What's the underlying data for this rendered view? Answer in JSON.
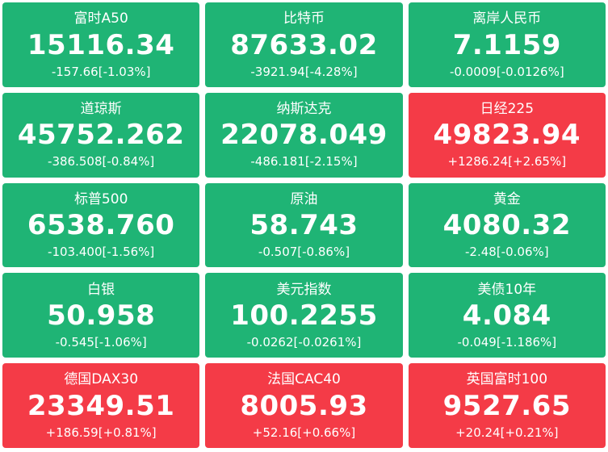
{
  "colors": {
    "down_tile_bg": "#1fb475",
    "up_tile_bg": "#f43b47",
    "text": "#ffffff",
    "page_bg": "#ffffff"
  },
  "tiles": [
    {
      "name": "富时A50",
      "price": "15116.34",
      "change": "-157.66[-1.03%]",
      "direction": "down"
    },
    {
      "name": "比特币",
      "price": "87633.02",
      "change": "-3921.94[-4.28%]",
      "direction": "down"
    },
    {
      "name": "离岸人民币",
      "price": "7.1159",
      "change": "-0.0009[-0.0126%]",
      "direction": "down"
    },
    {
      "name": "道琼斯",
      "price": "45752.262",
      "change": "-386.508[-0.84%]",
      "direction": "down"
    },
    {
      "name": "纳斯达克",
      "price": "22078.049",
      "change": "-486.181[-2.15%]",
      "direction": "down"
    },
    {
      "name": "日经225",
      "price": "49823.94",
      "change": "+1286.24[+2.65%]",
      "direction": "up"
    },
    {
      "name": "标普500",
      "price": "6538.760",
      "change": "-103.400[-1.56%]",
      "direction": "down"
    },
    {
      "name": "原油",
      "price": "58.743",
      "change": "-0.507[-0.86%]",
      "direction": "down"
    },
    {
      "name": "黄金",
      "price": "4080.32",
      "change": "-2.48[-0.06%]",
      "direction": "down"
    },
    {
      "name": "白银",
      "price": "50.958",
      "change": "-0.545[-1.06%]",
      "direction": "down"
    },
    {
      "name": "美元指数",
      "price": "100.2255",
      "change": "-0.0262[-0.0261%]",
      "direction": "down"
    },
    {
      "name": "美债10年",
      "price": "4.084",
      "change": "-0.049[-1.186%]",
      "direction": "down"
    },
    {
      "name": "德国DAX30",
      "price": "23349.51",
      "change": "+186.59[+0.81%]",
      "direction": "up"
    },
    {
      "name": "法国CAC40",
      "price": "8005.93",
      "change": "+52.16[+0.66%]",
      "direction": "up"
    },
    {
      "name": "英国富时100",
      "price": "9527.65",
      "change": "+20.24[+0.21%]",
      "direction": "up"
    }
  ]
}
